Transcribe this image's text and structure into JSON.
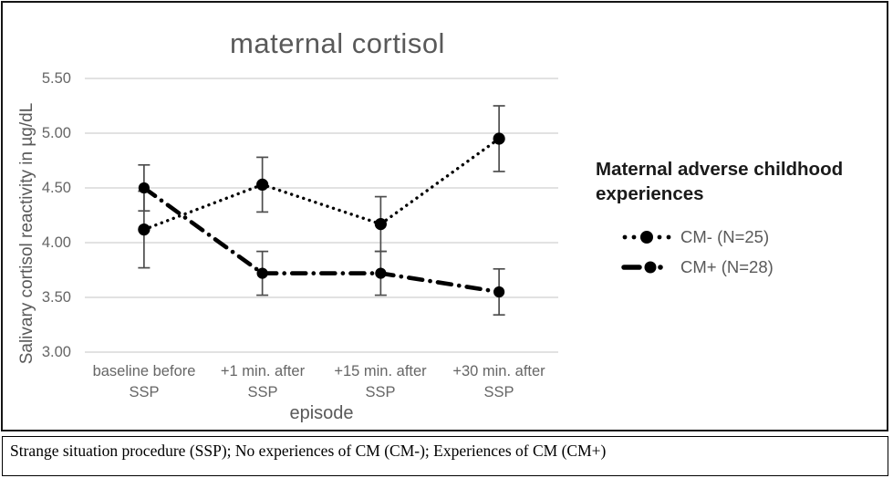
{
  "caption": "Strange situation procedure (SSP); No experiences of CM (CM-); Experiences of CM (CM+)",
  "legend": {
    "title": "Maternal adverse childhood experiences"
  },
  "colors": {
    "series": "#000000",
    "gridline": "#d9d9d9",
    "error_bar": "#4d4d4d",
    "chart_text_gray": "#595959"
  },
  "chart_data": {
    "type": "line",
    "title": "maternal cortisol",
    "xlabel": "episode",
    "ylabel": "Salivary cortisol reactivity in µg/dL",
    "ylim": [
      3.0,
      5.5
    ],
    "grid": true,
    "legend_position": "right",
    "categories": [
      "baseline before SSP",
      "+1 min. after SSP",
      "+15 min. after SSP",
      "+30 min. after SSP"
    ],
    "x_labels": [
      {
        "line1": "baseline before",
        "line2": "SSP"
      },
      {
        "line1": "+1 min. after",
        "line2": "SSP"
      },
      {
        "line1": "+15 min. after",
        "line2": "SSP"
      },
      {
        "line1": "+30 min. after",
        "line2": "SSP"
      }
    ],
    "yticks": [
      5.5,
      5.0,
      4.5,
      4.0,
      3.5,
      3.0
    ],
    "ytick_labels": [
      "5.50",
      "5.00",
      "4.50",
      "4.00",
      "3.50",
      "3.00"
    ],
    "series": [
      {
        "name": "CM- (N=25)",
        "line_style": "dotted",
        "marker": "filled-circle",
        "color": "#000000",
        "values": [
          4.12,
          4.53,
          4.17,
          4.95
        ],
        "error_bars": [
          0.35,
          0.25,
          0.25,
          0.3
        ]
      },
      {
        "name": "CM+ (N=28)",
        "line_style": "dash-dot",
        "marker": "filled-circle",
        "color": "#000000",
        "values": [
          4.5,
          3.72,
          3.72,
          3.55
        ],
        "error_bars": [
          0.21,
          0.2,
          0.2,
          0.21
        ]
      }
    ]
  }
}
